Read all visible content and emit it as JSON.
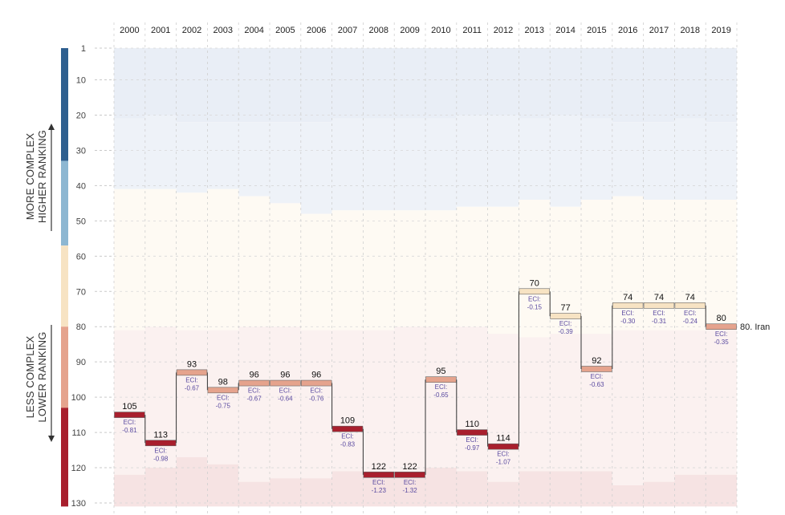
{
  "chart_data": {
    "type": "step",
    "title": "",
    "xlabel": "",
    "ylabel": "",
    "years": [
      "2000",
      "2001",
      "2002",
      "2003",
      "2004",
      "2005",
      "2006",
      "2007",
      "2008",
      "2009",
      "2010",
      "2011",
      "2012",
      "2013",
      "2014",
      "2015",
      "2016",
      "2017",
      "2018",
      "2019"
    ],
    "series": [
      {
        "name": "Iran",
        "rank": [
          105,
          113,
          93,
          98,
          96,
          96,
          96,
          109,
          122,
          122,
          95,
          110,
          114,
          70,
          77,
          92,
          74,
          74,
          74,
          80
        ],
        "eci": [
          "-0.81",
          "-0.98",
          "-0.67",
          "-0.75",
          "-0.67",
          "-0.64",
          "-0.76",
          "-0.83",
          "-1.23",
          "-1.32",
          "-0.65",
          "-0.97",
          "-1.07",
          "-0.15",
          "-0.39",
          "-0.63",
          "-0.30",
          "-0.31",
          "-0.24",
          "-0.35"
        ]
      }
    ],
    "eci_prefix": "ECI:",
    "end_label": "80. Iran",
    "y_ticks": [
      1,
      10,
      20,
      30,
      40,
      50,
      60,
      70,
      80,
      90,
      100,
      110,
      120,
      130
    ],
    "ylim": [
      1,
      130
    ],
    "y_reversed": true,
    "bands": [
      {
        "color": "#e9eef6",
        "bottom": [
          21,
          20,
          22,
          22,
          22,
          22,
          22,
          21,
          21,
          21,
          21,
          20,
          20,
          21,
          20,
          21,
          22,
          22,
          21,
          22
        ]
      },
      {
        "color": "#eef2f8",
        "bottom": [
          41,
          41,
          42,
          41,
          43,
          45,
          48,
          47,
          47,
          47,
          47,
          46,
          46,
          44,
          46,
          44,
          43,
          44,
          44,
          44
        ]
      },
      {
        "color": "#fefaf3",
        "bottom": [
          81,
          80,
          81,
          81,
          80,
          80,
          81,
          81,
          81,
          80,
          80,
          80,
          82,
          83,
          82,
          82,
          81,
          81,
          81,
          81
        ]
      },
      {
        "color": "#fbf1f0",
        "bottom": [
          122,
          120,
          117,
          119,
          124,
          123,
          123,
          121,
          121,
          122,
          120,
          121,
          124,
          121,
          121,
          121,
          125,
          124,
          122,
          122
        ]
      },
      {
        "color": "#f6e3e3",
        "bottom": [
          131,
          131,
          131,
          131,
          131,
          131,
          131,
          131,
          131,
          131,
          131,
          131,
          131,
          131,
          131,
          131,
          131,
          131,
          131,
          131
        ]
      }
    ],
    "color_scale": [
      {
        "from": 1,
        "to": 33,
        "color": "#2e5f8f"
      },
      {
        "from": 33,
        "to": 57,
        "color": "#8db7d2"
      },
      {
        "from": 57,
        "to": 80,
        "color": "#f7e3c3"
      },
      {
        "from": 80,
        "to": 103,
        "color": "#e5a38d"
      },
      {
        "from": 103,
        "to": 131,
        "color": "#a81f2d"
      }
    ]
  },
  "labels": {
    "top_line1": "MORE COMPLEX",
    "top_line2": "HIGHER RANKING",
    "bottom_line1": "LESS COMPLEX",
    "bottom_line2": "LOWER RANKING"
  }
}
